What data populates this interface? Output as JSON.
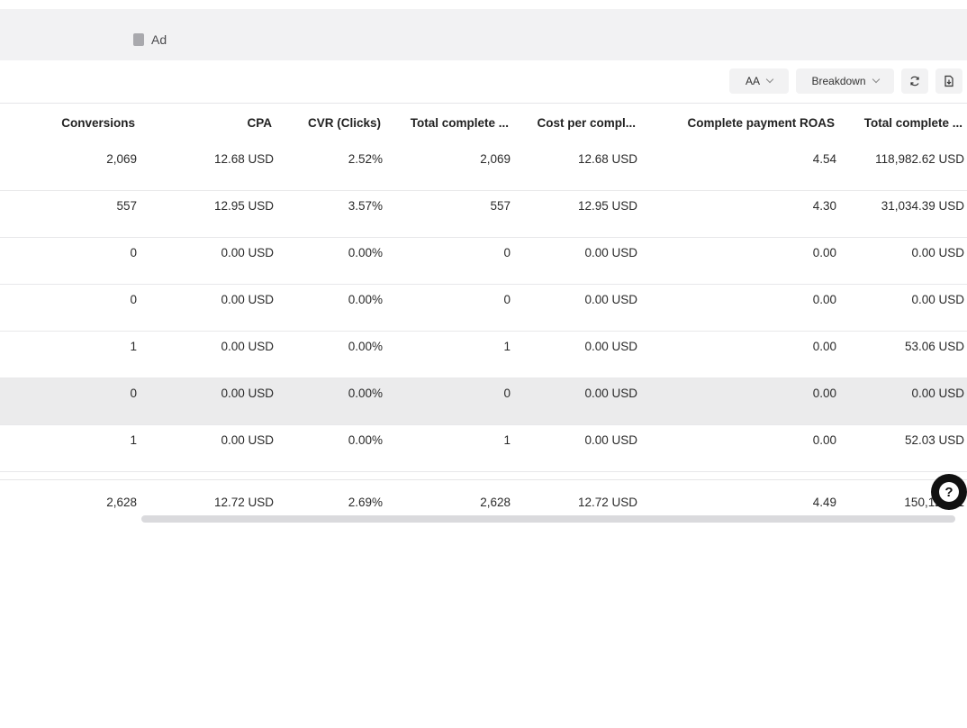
{
  "tabs": {
    "ad_label": "Ad"
  },
  "toolbar": {
    "aa_label": "AA",
    "breakdown_label": "Breakdown",
    "refresh_icon": "refresh-icon",
    "export_icon": "export-icon"
  },
  "table": {
    "columns": [
      "Conversions",
      "CPA",
      "CVR (Clicks)",
      "Total complete ...",
      "Cost per compl...",
      "Complete payment ROAS",
      "Total complete ..."
    ],
    "rows": [
      [
        "2,069",
        "12.68 USD",
        "2.52%",
        "2,069",
        "12.68 USD",
        "4.54",
        "118,982.62 USD"
      ],
      [
        "557",
        "12.95 USD",
        "3.57%",
        "557",
        "12.95 USD",
        "4.30",
        "31,034.39 USD"
      ],
      [
        "0",
        "0.00 USD",
        "0.00%",
        "0",
        "0.00 USD",
        "0.00",
        "0.00 USD"
      ],
      [
        "0",
        "0.00 USD",
        "0.00%",
        "0",
        "0.00 USD",
        "0.00",
        "0.00 USD"
      ],
      [
        "1",
        "0.00 USD",
        "0.00%",
        "1",
        "0.00 USD",
        "0.00",
        "53.06 USD"
      ],
      [
        "0",
        "0.00 USD",
        "0.00%",
        "0",
        "0.00 USD",
        "0.00",
        "0.00 USD"
      ],
      [
        "1",
        "0.00 USD",
        "0.00%",
        "1",
        "0.00 USD",
        "0.00",
        "52.03 USD"
      ]
    ],
    "total": [
      "2,628",
      "12.72 USD",
      "2.69%",
      "2,628",
      "12.72 USD",
      "4.49",
      "150,122.11"
    ]
  },
  "help_icon": "help-icon",
  "help_glyph": "?"
}
